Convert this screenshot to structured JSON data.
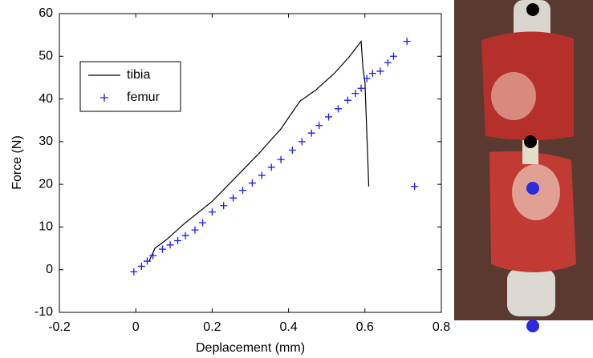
{
  "chart_data": {
    "type": "line",
    "x_label": "Deplacement (mm)",
    "y_label": "Force (N)",
    "xlim": [
      -0.2,
      0.8
    ],
    "xticks": [
      -0.2,
      0,
      0.2,
      0.4,
      0.6,
      0.8
    ],
    "ylim": [
      -10,
      60
    ],
    "yticks": [
      -10,
      0,
      10,
      20,
      30,
      40,
      50,
      60
    ],
    "legend": "upper left",
    "series": [
      {
        "name": "tibia",
        "color": "#000000",
        "mode": "line",
        "x": [
          0.035,
          0.05,
          0.08,
          0.13,
          0.2,
          0.26,
          0.32,
          0.38,
          0.43,
          0.47,
          0.52,
          0.56,
          0.59,
          0.595,
          0.6,
          0.61
        ],
        "values": [
          2,
          5,
          7,
          11,
          16,
          21.5,
          27,
          33,
          39.5,
          42,
          46,
          50,
          53.5,
          47,
          44,
          19.5
        ]
      },
      {
        "name": "femur",
        "color": "#1a1aff",
        "mode": "marker",
        "x": [
          -0.005,
          0.015,
          0.03,
          0.045,
          0.07,
          0.09,
          0.11,
          0.13,
          0.155,
          0.175,
          0.2,
          0.23,
          0.255,
          0.28,
          0.305,
          0.33,
          0.355,
          0.38,
          0.41,
          0.435,
          0.46,
          0.48,
          0.505,
          0.53,
          0.555,
          0.575,
          0.59,
          0.605,
          0.62,
          0.64,
          0.66,
          0.675,
          0.71,
          0.73
        ],
        "values": [
          -0.5,
          0.8,
          2,
          3.3,
          4.8,
          5.8,
          6.8,
          8,
          9.3,
          11,
          13.5,
          15,
          16.8,
          18.6,
          20.3,
          22.1,
          24,
          25.8,
          28,
          30,
          32,
          33.8,
          35.8,
          37.7,
          39.7,
          41.3,
          42.5,
          44.8,
          46,
          46.5,
          48.5,
          50,
          53.5,
          19.5
        ]
      }
    ]
  }
}
